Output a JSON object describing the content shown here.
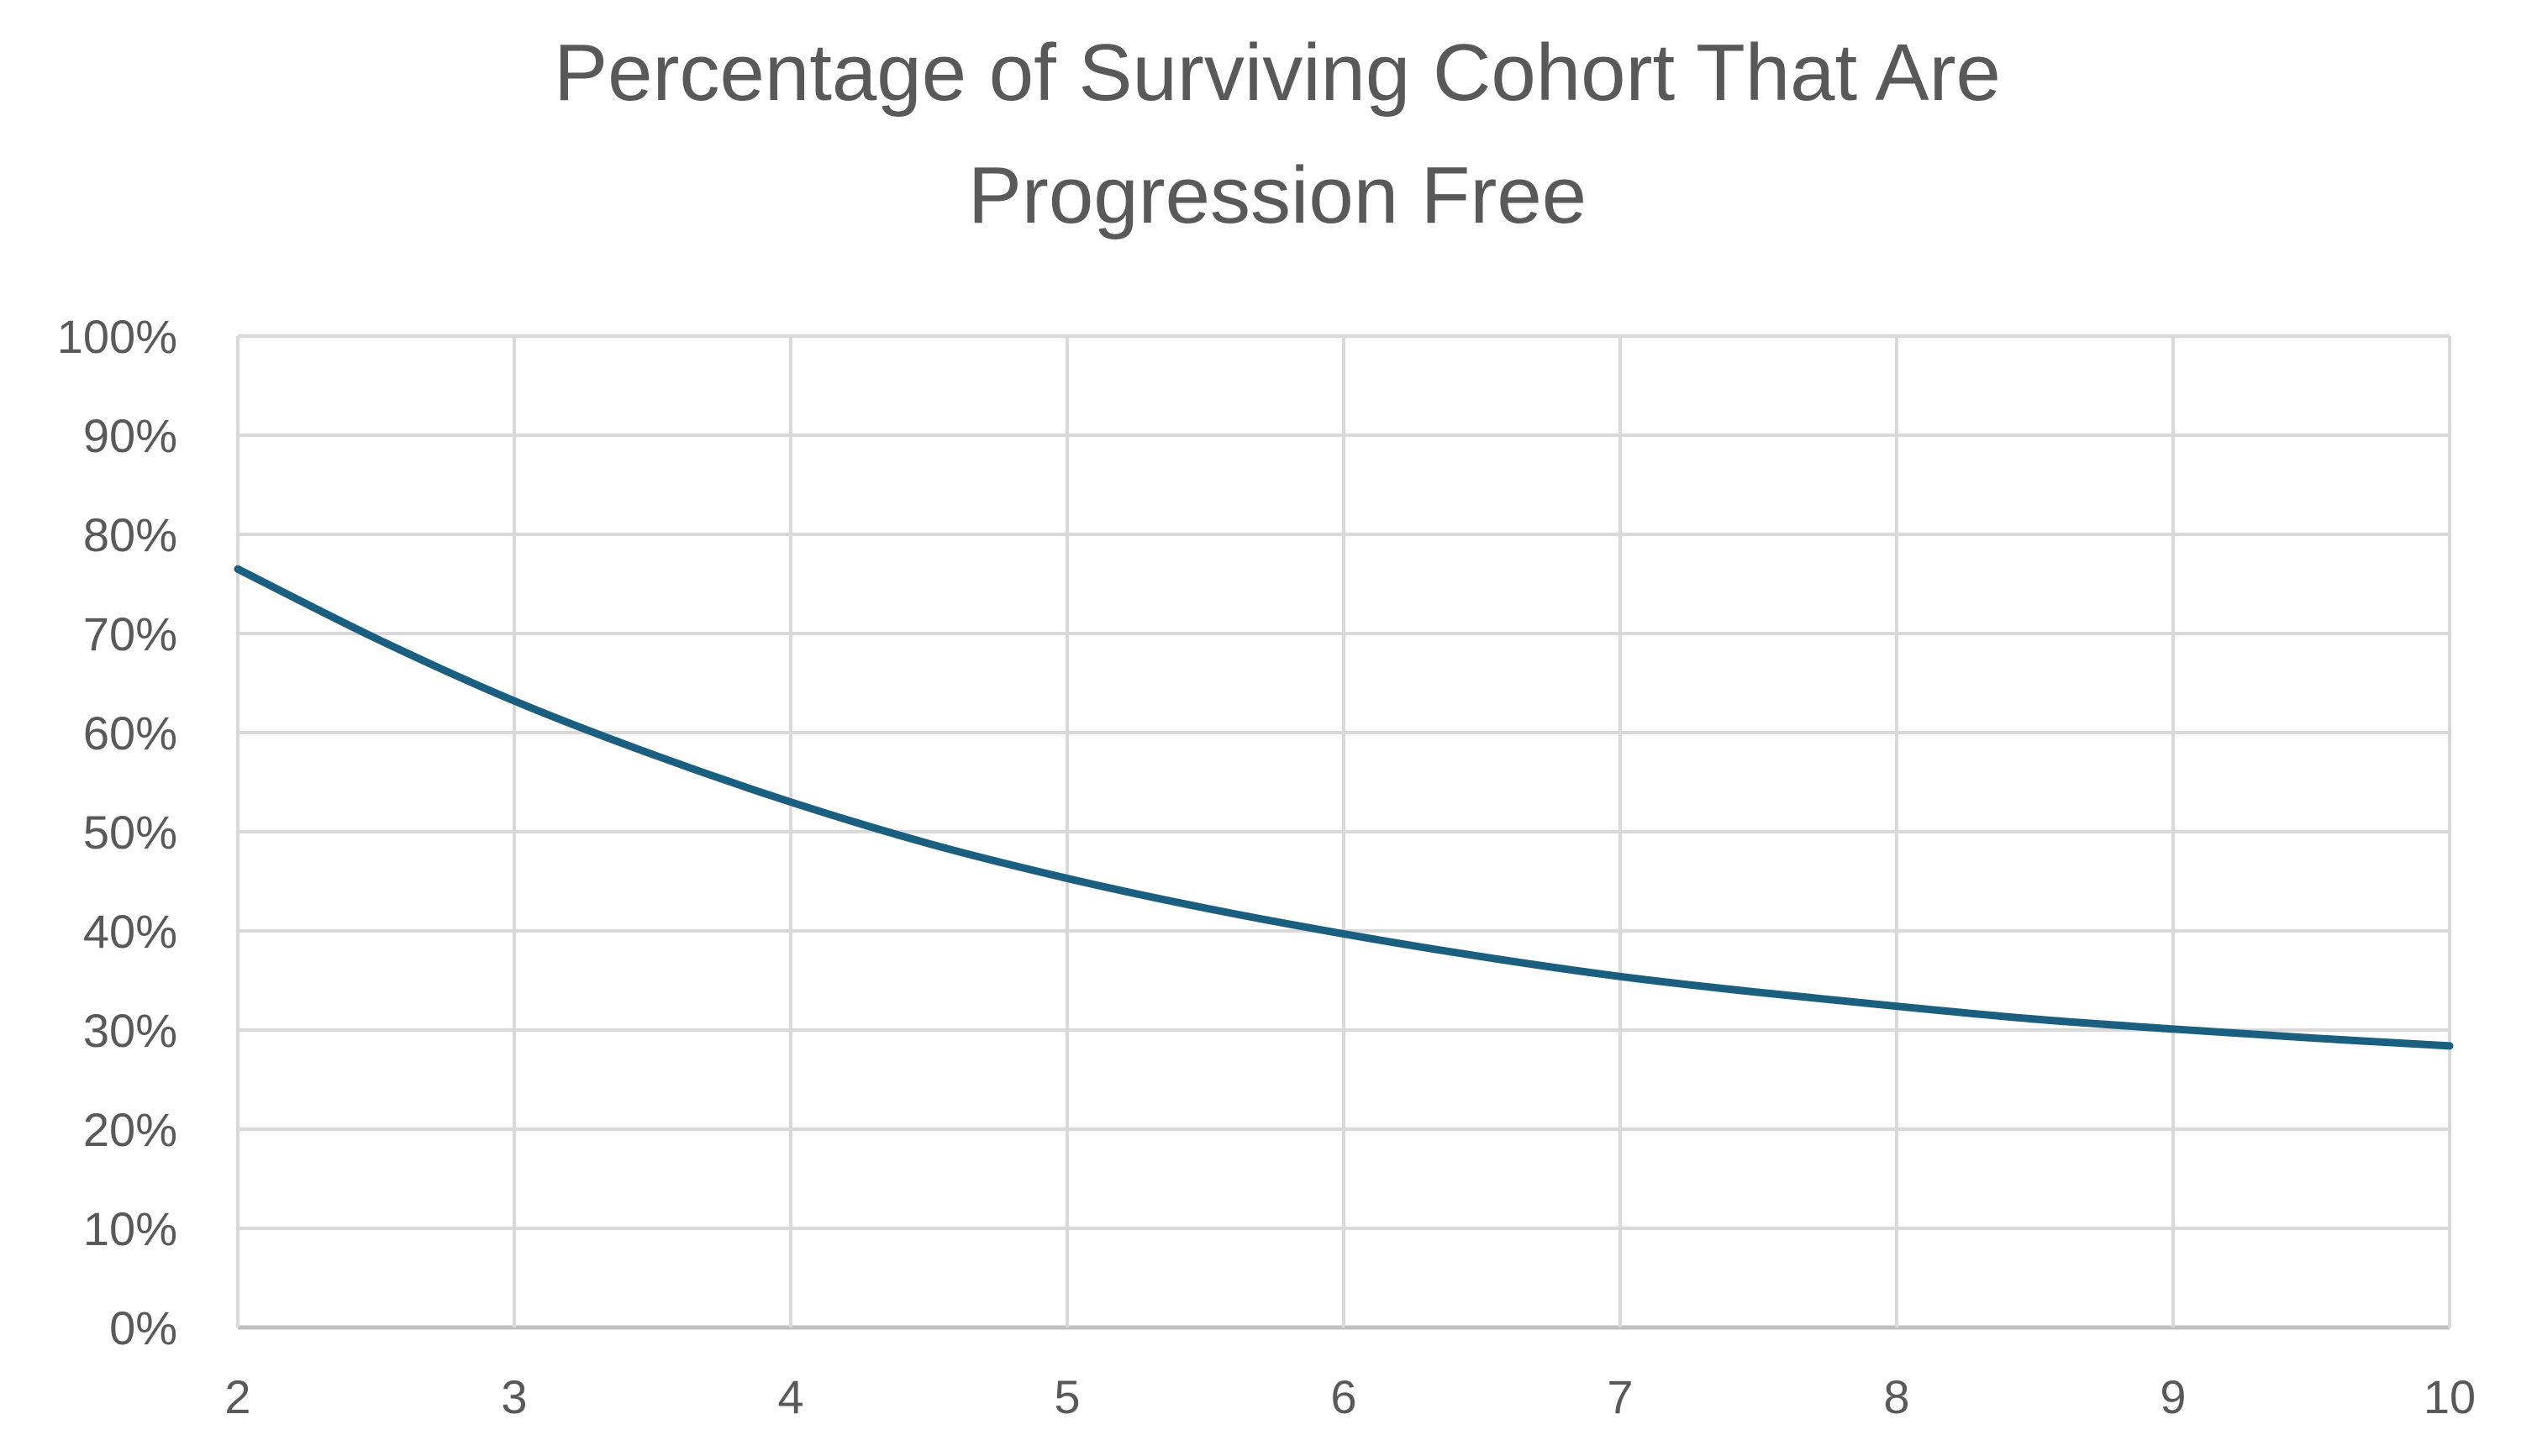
{
  "chart_data": {
    "type": "line",
    "title_lines": [
      "Percentage of Surviving Cohort That Are",
      "Progression Free"
    ],
    "xlabel": "",
    "ylabel": "",
    "xlim": [
      2,
      10
    ],
    "ylim": [
      0,
      100
    ],
    "x_ticks": [
      "2",
      "3",
      "4",
      "5",
      "6",
      "7",
      "8",
      "9",
      "10"
    ],
    "y_ticks": [
      "0%",
      "10%",
      "20%",
      "30%",
      "40%",
      "50%",
      "60%",
      "70%",
      "80%",
      "90%",
      "100%"
    ],
    "grid": true,
    "legend": "none",
    "series": [
      {
        "x": [
          2,
          2.5,
          3,
          3.5,
          4,
          4.5,
          5,
          5.5,
          6,
          6.5,
          7,
          7.5,
          8,
          8.5,
          9,
          9.5,
          10
        ],
        "values": [
          76.5,
          69.5,
          63.2,
          57.8,
          53.0,
          48.8,
          45.3,
          42.3,
          39.7,
          37.4,
          35.4,
          33.8,
          32.4,
          31.1,
          30.1,
          29.2,
          28.4
        ]
      }
    ],
    "colors": {
      "line": "#1a5f80",
      "grid": "#d9d9d9",
      "text": "#595959"
    }
  }
}
